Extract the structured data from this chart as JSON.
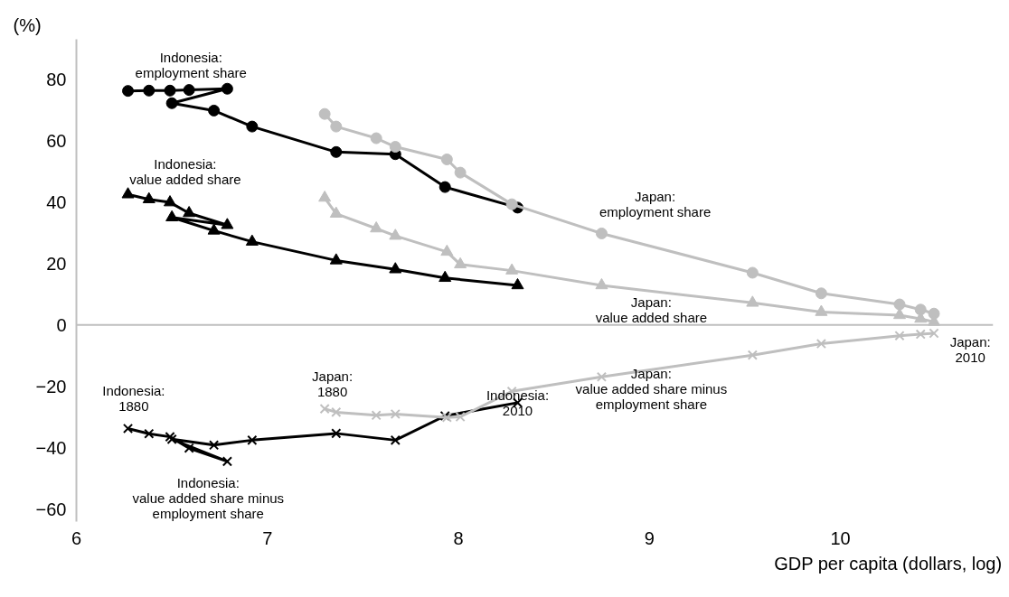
{
  "chart_data": {
    "type": "line",
    "ylabel": "(%)",
    "xlabel": "GDP per capita (dollars, log)",
    "xlim": [
      6,
      10.8
    ],
    "xticks": [
      6,
      7,
      8,
      9,
      10
    ],
    "ylim": [
      -64,
      93
    ],
    "yticks": [
      -60,
      -40,
      -20,
      0,
      20,
      40,
      60,
      80
    ],
    "grid": false,
    "line_style": "solid",
    "ref_lines": [
      {
        "axis": "y",
        "value": 0,
        "color": "#bfbfbf"
      }
    ],
    "series": [
      {
        "color": "#000000",
        "marker": "circle",
        "x": [
          6.27,
          6.38,
          6.49,
          6.59,
          6.79,
          6.5,
          6.72,
          6.92,
          7.36,
          7.67,
          7.93,
          8.31
        ],
        "values": [
          76.2,
          76.3,
          76.3,
          76.5,
          76.9,
          72.2,
          69.8,
          64.6,
          56.3,
          55.6,
          44.9,
          38.2
        ]
      },
      {
        "color": "#000000",
        "marker": "triangle",
        "x": [
          6.27,
          6.38,
          6.49,
          6.59,
          6.79,
          6.5,
          6.72,
          6.92,
          7.36,
          7.67,
          7.93,
          8.31
        ],
        "values": [
          42.5,
          40.9,
          39.9,
          36.4,
          32.5,
          35.0,
          30.7,
          27.1,
          21.0,
          18.1,
          15.3,
          12.9
        ]
      },
      {
        "color": "#000000",
        "marker": "cross",
        "x": [
          6.27,
          6.38,
          6.49,
          6.59,
          6.79,
          6.5,
          6.72,
          6.92,
          7.36,
          7.67,
          7.93,
          8.31
        ],
        "values": [
          -33.7,
          -35.4,
          -36.4,
          -40.1,
          -44.4,
          -37.2,
          -39.1,
          -37.5,
          -35.3,
          -37.5,
          -29.6,
          -25.3
        ]
      },
      {
        "color": "#bfbfbf",
        "marker": "circle",
        "x": [
          7.3,
          7.36,
          7.57,
          7.67,
          7.94,
          8.01,
          8.28,
          8.75,
          9.54,
          9.9,
          10.31,
          10.42,
          10.49
        ],
        "values": [
          68.7,
          64.6,
          60.8,
          58.0,
          53.9,
          49.6,
          39.3,
          29.8,
          17.0,
          10.3,
          6.7,
          5.0,
          3.7
        ]
      },
      {
        "color": "#bfbfbf",
        "marker": "triangle",
        "x": [
          7.3,
          7.36,
          7.57,
          7.67,
          7.94,
          8.01,
          8.28,
          8.75,
          9.54,
          9.9,
          10.31,
          10.42,
          10.49
        ],
        "values": [
          41.4,
          36.2,
          31.4,
          29.0,
          23.8,
          19.7,
          17.7,
          12.9,
          7.2,
          4.2,
          3.2,
          2.0,
          1.0
        ]
      },
      {
        "color": "#bfbfbf",
        "marker": "cross",
        "x": [
          7.3,
          7.36,
          7.57,
          7.67,
          7.94,
          8.01,
          8.28,
          8.75,
          9.54,
          9.9,
          10.31,
          10.42,
          10.49
        ],
        "values": [
          -27.3,
          -28.4,
          -29.4,
          -29.0,
          -30.1,
          -29.9,
          -21.6,
          -16.9,
          -9.8,
          -6.1,
          -3.5,
          -3.0,
          -2.7
        ]
      }
    ],
    "annotations": [
      "Indonesia:\nemployment share",
      "Indonesia:\nvalue added share",
      "Japan:\nemployment share",
      "Japan:\nvalue added share",
      "Japan:\n2010",
      "Japan:\nvalue added share minus\nemployment share",
      "Indonesia:\n2010",
      "Japan:\n1880",
      "Indonesia:\n1880",
      "Indonesia:\nvalue added share minus\nemployment share"
    ]
  }
}
